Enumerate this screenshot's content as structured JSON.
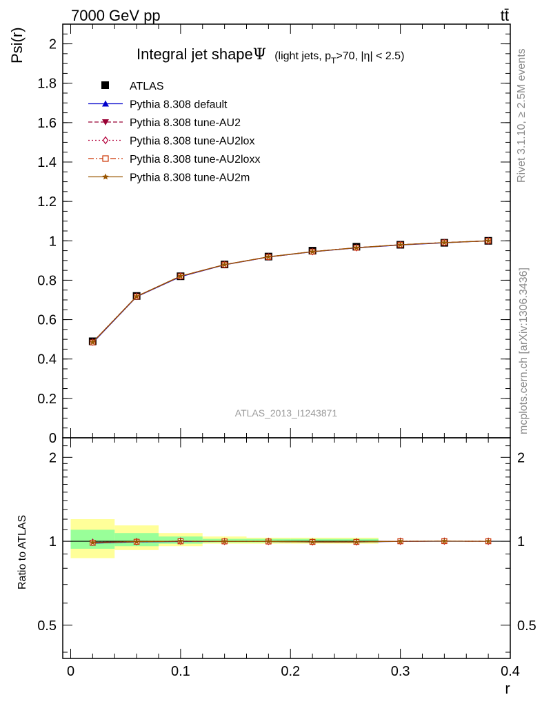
{
  "header": {
    "energy": "7000 GeV pp",
    "process": "tt̄"
  },
  "side_labels": {
    "rivet": "Rivet 3.1.10, ≥ 2.5M events",
    "mcplots": "mcplots.cern.ch [arXiv:1306.3436]"
  },
  "watermark": "ATLAS_2013_I1243871",
  "chart_data": {
    "type": "line",
    "title": "Integral jet shape",
    "title_symbol": "Ψ",
    "subtitle": "(light jets, p_T>70, |η| < 2.5)",
    "xlabel": "r",
    "ylabel": "Psi(r)",
    "ratio_ylabel": "Ratio to ATLAS",
    "xlim": [
      0,
      0.4
    ],
    "ylim": [
      0,
      2.1
    ],
    "ratio_ylim": [
      0.38,
      2.35
    ],
    "ratio_scale": "log",
    "legend_position": "top-left",
    "x_ticks": [
      "0",
      "0.1",
      "0.2",
      "0.3",
      "0.4"
    ],
    "y_ticks": [
      "0",
      "0.2",
      "0.4",
      "0.6",
      "0.8",
      "1",
      "1.2",
      "1.4",
      "1.6",
      "1.8",
      "2"
    ],
    "ratio_y_ticks": [
      "0.5",
      "1",
      "2"
    ],
    "x": [
      0.02,
      0.06,
      0.1,
      0.14,
      0.18,
      0.22,
      0.26,
      0.3,
      0.34,
      0.38
    ],
    "data": {
      "name": "ATLAS",
      "values": [
        0.49,
        0.72,
        0.82,
        0.88,
        0.92,
        0.95,
        0.97,
        0.98,
        0.99,
        1.0
      ],
      "errors": [
        0.01,
        0.01,
        0.005,
        0.005,
        0.005,
        0.005,
        0.005,
        0.003,
        0.002,
        0.0
      ],
      "color": "#000000"
    },
    "ratio_bands": {
      "x_edges": [
        0.0,
        0.04,
        0.08,
        0.12,
        0.16,
        0.2,
        0.24,
        0.28
      ],
      "stat_low": [
        0.94,
        0.96,
        0.98,
        0.99,
        0.99,
        0.99,
        0.99
      ],
      "stat_high": [
        1.1,
        1.07,
        1.04,
        1.02,
        1.02,
        1.02,
        1.02
      ],
      "total_low": [
        0.87,
        0.93,
        0.96,
        0.98,
        0.98,
        0.98,
        0.98
      ],
      "total_high": [
        1.2,
        1.14,
        1.07,
        1.04,
        1.03,
        1.03,
        1.03
      ],
      "stat_color": "#99ff99",
      "total_color": "#ffff99"
    },
    "series": [
      {
        "name": "Pythia 8.308 default",
        "values": [
          0.482,
          0.716,
          0.818,
          0.878,
          0.918,
          0.944,
          0.964,
          0.979,
          0.99,
          1.0
        ],
        "color": "#0000cc",
        "marker": "triangle-up",
        "dash": "solid"
      },
      {
        "name": "Pythia 8.308 tune-AU2",
        "values": [
          0.485,
          0.718,
          0.82,
          0.879,
          0.918,
          0.945,
          0.965,
          0.98,
          0.991,
          1.0
        ],
        "color": "#990033",
        "marker": "triangle-down",
        "dash": "dashed"
      },
      {
        "name": "Pythia 8.308 tune-AU2lox",
        "values": [
          0.486,
          0.718,
          0.821,
          0.879,
          0.919,
          0.945,
          0.965,
          0.98,
          0.991,
          1.0
        ],
        "color": "#b3003b",
        "marker": "diamond-open",
        "dash": "dotted"
      },
      {
        "name": "Pythia 8.308 tune-AU2loxx",
        "values": [
          0.484,
          0.717,
          0.82,
          0.879,
          0.918,
          0.945,
          0.965,
          0.98,
          0.991,
          1.0
        ],
        "color": "#cc3300",
        "marker": "square-open",
        "dash": "dashdot"
      },
      {
        "name": "Pythia 8.308 tune-AU2m",
        "values": [
          0.485,
          0.718,
          0.821,
          0.879,
          0.919,
          0.945,
          0.965,
          0.98,
          0.991,
          1.0
        ],
        "color": "#995500",
        "marker": "star",
        "dash": "solid"
      }
    ]
  }
}
